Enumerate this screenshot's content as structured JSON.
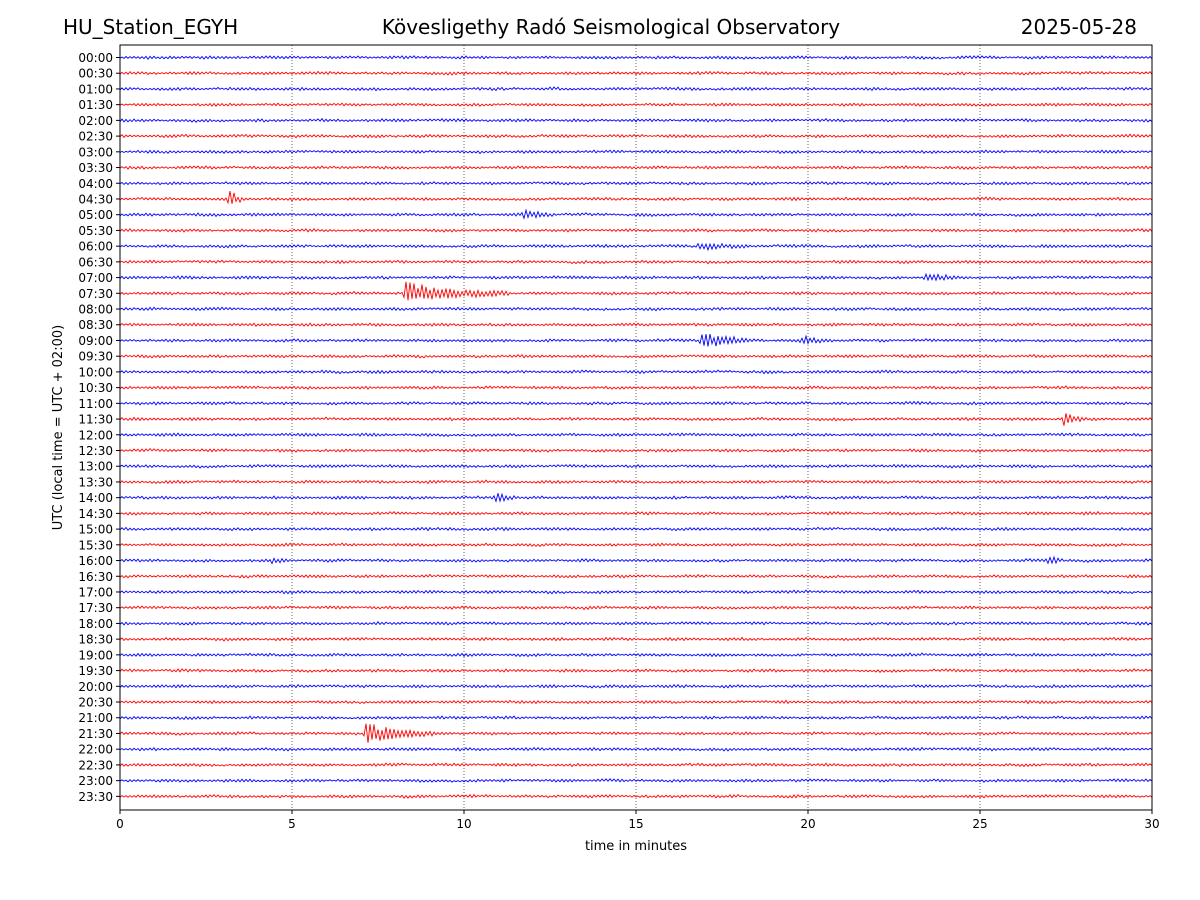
{
  "header": {
    "station": "HU_Station_EGYH",
    "title": "Kövesligethy Radó Seismological Observatory",
    "date": "2025-05-28"
  },
  "chart_data": {
    "type": "line",
    "chart_kind": "helicorder",
    "xlabel": "time in minutes",
    "ylabel": "UTC (local time = UTC + 02:00)",
    "xlim": [
      0,
      30
    ],
    "xticks": [
      0,
      5,
      10,
      15,
      20,
      25,
      30
    ],
    "grid": "vertical dotted lines at x ticks",
    "legend": "none",
    "colors": [
      "#0000ff",
      "#ff0000"
    ],
    "rows": [
      "00:00",
      "00:30",
      "01:00",
      "01:30",
      "02:00",
      "02:30",
      "03:00",
      "03:30",
      "04:00",
      "04:30",
      "05:00",
      "05:30",
      "06:00",
      "06:30",
      "07:00",
      "07:30",
      "08:00",
      "08:30",
      "09:00",
      "09:30",
      "10:00",
      "10:30",
      "11:00",
      "11:30",
      "12:00",
      "12:30",
      "13:00",
      "13:30",
      "14:00",
      "14:30",
      "15:00",
      "15:30",
      "16:00",
      "16:30",
      "17:00",
      "17:30",
      "18:00",
      "18:30",
      "19:00",
      "19:30",
      "20:00",
      "20:30",
      "21:00",
      "21:30",
      "22:00",
      "22:30",
      "23:00",
      "23:30"
    ],
    "events": [
      {
        "row": "04:30",
        "minute": 3.15,
        "amplitude": 10,
        "duration": 0.5
      },
      {
        "row": "05:00",
        "minute": 11.7,
        "amplitude": 5,
        "duration": 1.0
      },
      {
        "row": "06:00",
        "minute": 16.8,
        "amplitude": 4,
        "duration": 1.5
      },
      {
        "row": "07:00",
        "minute": 23.4,
        "amplitude": 4,
        "duration": 1.0
      },
      {
        "row": "07:30",
        "minute": 8.3,
        "amplitude": 11,
        "duration": 3.0
      },
      {
        "row": "09:00",
        "minute": 16.9,
        "amplitude": 9,
        "duration": 1.5
      },
      {
        "row": "09:00",
        "minute": 19.8,
        "amplitude": 4,
        "duration": 1.0
      },
      {
        "row": "11:30",
        "minute": 27.4,
        "amplitude": 8,
        "duration": 0.6
      },
      {
        "row": "14:00",
        "minute": 10.9,
        "amplitude": 7,
        "duration": 0.6
      },
      {
        "row": "16:00",
        "minute": 4.4,
        "amplitude": 3,
        "duration": 0.5
      },
      {
        "row": "16:00",
        "minute": 27.0,
        "amplitude": 6,
        "duration": 0.4
      },
      {
        "row": "21:30",
        "minute": 7.1,
        "amplitude": 11,
        "duration": 2.0
      }
    ]
  }
}
